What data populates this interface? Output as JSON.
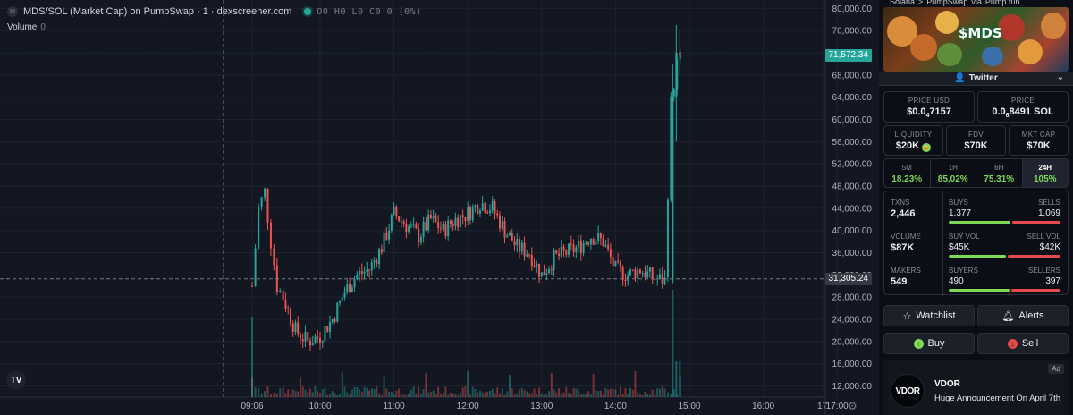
{
  "legend": {
    "title": "MDS/SOL (Market Cap) on PumpSwap · 1 · dexscreener.com",
    "ohlc": "O0 H0 L0 C0 0 (0%)",
    "volume_label": "Volume",
    "volume_value": "0"
  },
  "colors": {
    "up": "#26a69a",
    "down": "#ef5350",
    "background": "#131722",
    "grid": "#1f2330",
    "accent_green": "#7ed957",
    "accent_red": "#e5484d"
  },
  "price_axis": {
    "ticks": [
      "80,000.00",
      "76,000.00",
      "72,000.00",
      "68,000.00",
      "64,000.00",
      "60,000.00",
      "56,000.00",
      "52,000.00",
      "48,000.00",
      "44,000.00",
      "40,000.00",
      "36,000.00",
      "32,000.00",
      "28,000.00",
      "24,000.00",
      "20,000.00",
      "16,000.00",
      "12,000.00"
    ],
    "current_label": "71,572.34",
    "crosshair_label": "31,305.24"
  },
  "time_axis": {
    "ticks": [
      "09:06",
      "10:00",
      "11:00",
      "12:00",
      "13:00",
      "14:00",
      "15:00",
      "16:00",
      "17:00",
      "17:"
    ]
  },
  "chart_data": {
    "type": "candlestick",
    "y_range": [
      10000,
      81500
    ],
    "x_labels": [
      "09:06",
      "10:00",
      "11:00",
      "12:00",
      "13:00",
      "14:00",
      "15:00",
      "16:00",
      "17:00"
    ],
    "current_price": 71572.34,
    "crosshair_price": 31305.24,
    "approx_close_path": [
      [
        "09:06",
        30000
      ],
      [
        "09:10",
        44000
      ],
      [
        "09:15",
        47000
      ],
      [
        "09:20",
        38000
      ],
      [
        "09:25",
        30000
      ],
      [
        "09:30",
        28000
      ],
      [
        "09:40",
        22000
      ],
      [
        "09:50",
        20000
      ],
      [
        "10:00",
        21000
      ],
      [
        "10:10",
        24000
      ],
      [
        "10:20",
        29000
      ],
      [
        "10:30",
        32000
      ],
      [
        "10:40",
        33000
      ],
      [
        "10:50",
        37000
      ],
      [
        "11:00",
        43000
      ],
      [
        "11:10",
        41000
      ],
      [
        "11:20",
        39000
      ],
      [
        "11:30",
        42000
      ],
      [
        "11:40",
        40000
      ],
      [
        "11:50",
        42000
      ],
      [
        "12:00",
        43000
      ],
      [
        "12:10",
        45000
      ],
      [
        "12:20",
        44000
      ],
      [
        "12:30",
        40000
      ],
      [
        "12:40",
        37000
      ],
      [
        "12:50",
        36000
      ],
      [
        "13:00",
        32000
      ],
      [
        "13:10",
        35000
      ],
      [
        "13:20",
        36000
      ],
      [
        "13:30",
        37000
      ],
      [
        "13:40",
        39000
      ],
      [
        "13:50",
        38000
      ],
      [
        "14:00",
        33000
      ],
      [
        "14:10",
        32000
      ],
      [
        "14:20",
        33000
      ],
      [
        "14:30",
        31500
      ],
      [
        "14:40",
        31000
      ],
      [
        "14:45",
        63000
      ],
      [
        "14:50",
        70000
      ],
      [
        "14:55",
        72000
      ]
    ]
  },
  "sidebar": {
    "breadcrumb": [
      "Solana",
      ">",
      "PumpSwap",
      "via",
      "Pump.fun"
    ],
    "banner_text": "$MDS",
    "twitter_label": "Twitter",
    "price_usd_label": "PRICE USD",
    "price_usd_value": "$0.0",
    "price_usd_sub": "4",
    "price_usd_tail": "7157",
    "price_sol_label": "PRICE",
    "price_sol_value": "0.0",
    "price_sol_sub": "6",
    "price_sol_tail": "8491 SOL",
    "liquidity_label": "LIQUIDITY",
    "liquidity_value": "$20K",
    "fdv_label": "FDV",
    "fdv_value": "$70K",
    "mktcap_label": "MKT CAP",
    "mktcap_value": "$70K",
    "timeframes": [
      {
        "name": "5M",
        "pct": "18.23%"
      },
      {
        "name": "1H",
        "pct": "85.02%"
      },
      {
        "name": "6H",
        "pct": "75.31%"
      },
      {
        "name": "24H",
        "pct": "105%"
      }
    ],
    "stats": [
      {
        "left_label": "TXNS",
        "left_value": "2,446",
        "a_label": "BUYS",
        "b_label": "SELLS",
        "a_value": "1,377",
        "b_value": "1,069",
        "a_ratio": 0.56
      },
      {
        "left_label": "VOLUME",
        "left_value": "$87K",
        "a_label": "BUY VOL",
        "b_label": "SELL VOL",
        "a_value": "$45K",
        "b_value": "$42K",
        "a_ratio": 0.52
      },
      {
        "left_label": "MAKERS",
        "left_value": "549",
        "a_label": "BUYERS",
        "b_label": "SELLERS",
        "a_value": "490",
        "b_value": "397",
        "a_ratio": 0.55
      }
    ],
    "watchlist_label": "Watchlist",
    "alerts_label": "Alerts",
    "buy_label": "Buy",
    "sell_label": "Sell",
    "ad_tag": "Ad",
    "ad_logo": "VDOR",
    "ad_title": "VDOR",
    "ad_text": "Huge Announcement On April 7th"
  }
}
